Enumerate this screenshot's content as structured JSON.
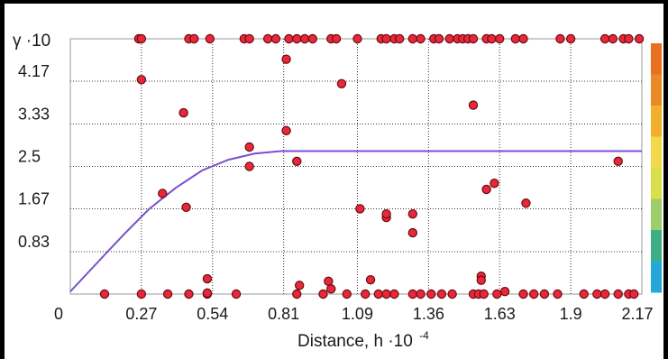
{
  "chart_data": {
    "type": "scatter",
    "title": "",
    "ylabel_base": "γ ·10",
    "xlabel_base": "Distance, h ·10",
    "xlabel_exp": "-4",
    "x_ticks": [
      "0",
      "0.27",
      "0.54",
      "0.81",
      "1.09",
      "1.36",
      "1.63",
      "1.9",
      "2.17"
    ],
    "y_ticks": [
      "0.83",
      "1.67",
      "2.5",
      "3.33",
      "4.17"
    ],
    "xlim": [
      0,
      2.17
    ],
    "ylim": [
      0,
      5
    ],
    "grid": true,
    "colorbar": [
      "#e8701e",
      "#ea8a25",
      "#f0b02c",
      "#f2d84a",
      "#d9e04a",
      "#9ccf6a",
      "#3fae84",
      "#24a8d8"
    ],
    "points": [
      [
        0.13,
        0
      ],
      [
        0.27,
        0
      ],
      [
        0.37,
        0
      ],
      [
        0.45,
        0
      ],
      [
        0.52,
        0
      ],
      [
        0.63,
        0
      ],
      [
        0.86,
        0
      ],
      [
        0.96,
        0
      ],
      [
        1.05,
        0
      ],
      [
        1.12,
        0
      ],
      [
        1.17,
        0
      ],
      [
        1.2,
        0
      ],
      [
        1.23,
        0
      ],
      [
        1.3,
        0
      ],
      [
        1.33,
        0
      ],
      [
        1.37,
        0
      ],
      [
        1.41,
        0
      ],
      [
        1.45,
        0
      ],
      [
        1.53,
        0
      ],
      [
        1.55,
        0
      ],
      [
        1.57,
        0
      ],
      [
        1.62,
        0
      ],
      [
        1.72,
        0
      ],
      [
        1.76,
        0
      ],
      [
        1.8,
        0
      ],
      [
        1.85,
        0
      ],
      [
        1.95,
        0
      ],
      [
        2.0,
        0
      ],
      [
        2.03,
        0
      ],
      [
        2.08,
        0
      ],
      [
        2.12,
        0
      ],
      [
        2.14,
        0
      ],
      [
        0.26,
        5
      ],
      [
        0.27,
        5
      ],
      [
        0.45,
        5
      ],
      [
        0.47,
        5
      ],
      [
        0.53,
        5
      ],
      [
        0.66,
        5
      ],
      [
        0.68,
        5
      ],
      [
        0.75,
        5
      ],
      [
        0.78,
        5
      ],
      [
        0.83,
        5
      ],
      [
        0.86,
        5
      ],
      [
        0.89,
        5
      ],
      [
        0.92,
        5
      ],
      [
        0.99,
        5
      ],
      [
        1.01,
        5
      ],
      [
        1.09,
        5
      ],
      [
        1.18,
        5
      ],
      [
        1.2,
        5
      ],
      [
        1.23,
        5
      ],
      [
        1.25,
        5
      ],
      [
        1.3,
        5
      ],
      [
        1.33,
        5
      ],
      [
        1.38,
        5
      ],
      [
        1.4,
        5
      ],
      [
        1.44,
        5
      ],
      [
        1.47,
        5
      ],
      [
        1.49,
        5
      ],
      [
        1.51,
        5
      ],
      [
        1.53,
        5
      ],
      [
        1.58,
        5
      ],
      [
        1.6,
        5
      ],
      [
        1.63,
        5
      ],
      [
        1.69,
        5
      ],
      [
        1.72,
        5
      ],
      [
        1.86,
        5
      ],
      [
        1.9,
        5
      ],
      [
        2.03,
        5
      ],
      [
        2.06,
        5
      ],
      [
        2.1,
        5
      ],
      [
        2.12,
        5
      ],
      [
        2.16,
        5
      ],
      [
        0.27,
        4.2
      ],
      [
        0.43,
        3.55
      ],
      [
        0.35,
        1.97
      ],
      [
        0.44,
        1.7
      ],
      [
        0.52,
        0.3
      ],
      [
        0.52,
        0.02
      ],
      [
        0.68,
        2.88
      ],
      [
        0.68,
        2.5
      ],
      [
        0.82,
        4.6
      ],
      [
        0.82,
        3.2
      ],
      [
        0.86,
        2.6
      ],
      [
        0.87,
        0.17
      ],
      [
        0.98,
        0.25
      ],
      [
        0.99,
        0.1
      ],
      [
        1.03,
        4.12
      ],
      [
        1.1,
        1.67
      ],
      [
        1.14,
        0.28
      ],
      [
        1.2,
        1.5
      ],
      [
        1.2,
        1.57
      ],
      [
        1.3,
        1.57
      ],
      [
        1.3,
        1.2
      ],
      [
        1.53,
        3.7
      ],
      [
        1.56,
        0.35
      ],
      [
        1.56,
        0.27
      ],
      [
        1.58,
        2.05
      ],
      [
        1.61,
        2.17
      ],
      [
        1.73,
        1.78
      ],
      [
        1.65,
        0.05
      ],
      [
        2.08,
        2.6
      ]
    ],
    "variogram": [
      [
        0,
        0.05
      ],
      [
        0.1,
        0.6
      ],
      [
        0.2,
        1.15
      ],
      [
        0.3,
        1.67
      ],
      [
        0.4,
        2.08
      ],
      [
        0.5,
        2.42
      ],
      [
        0.6,
        2.63
      ],
      [
        0.7,
        2.75
      ],
      [
        0.8,
        2.8
      ],
      [
        2.17,
        2.8
      ]
    ]
  }
}
